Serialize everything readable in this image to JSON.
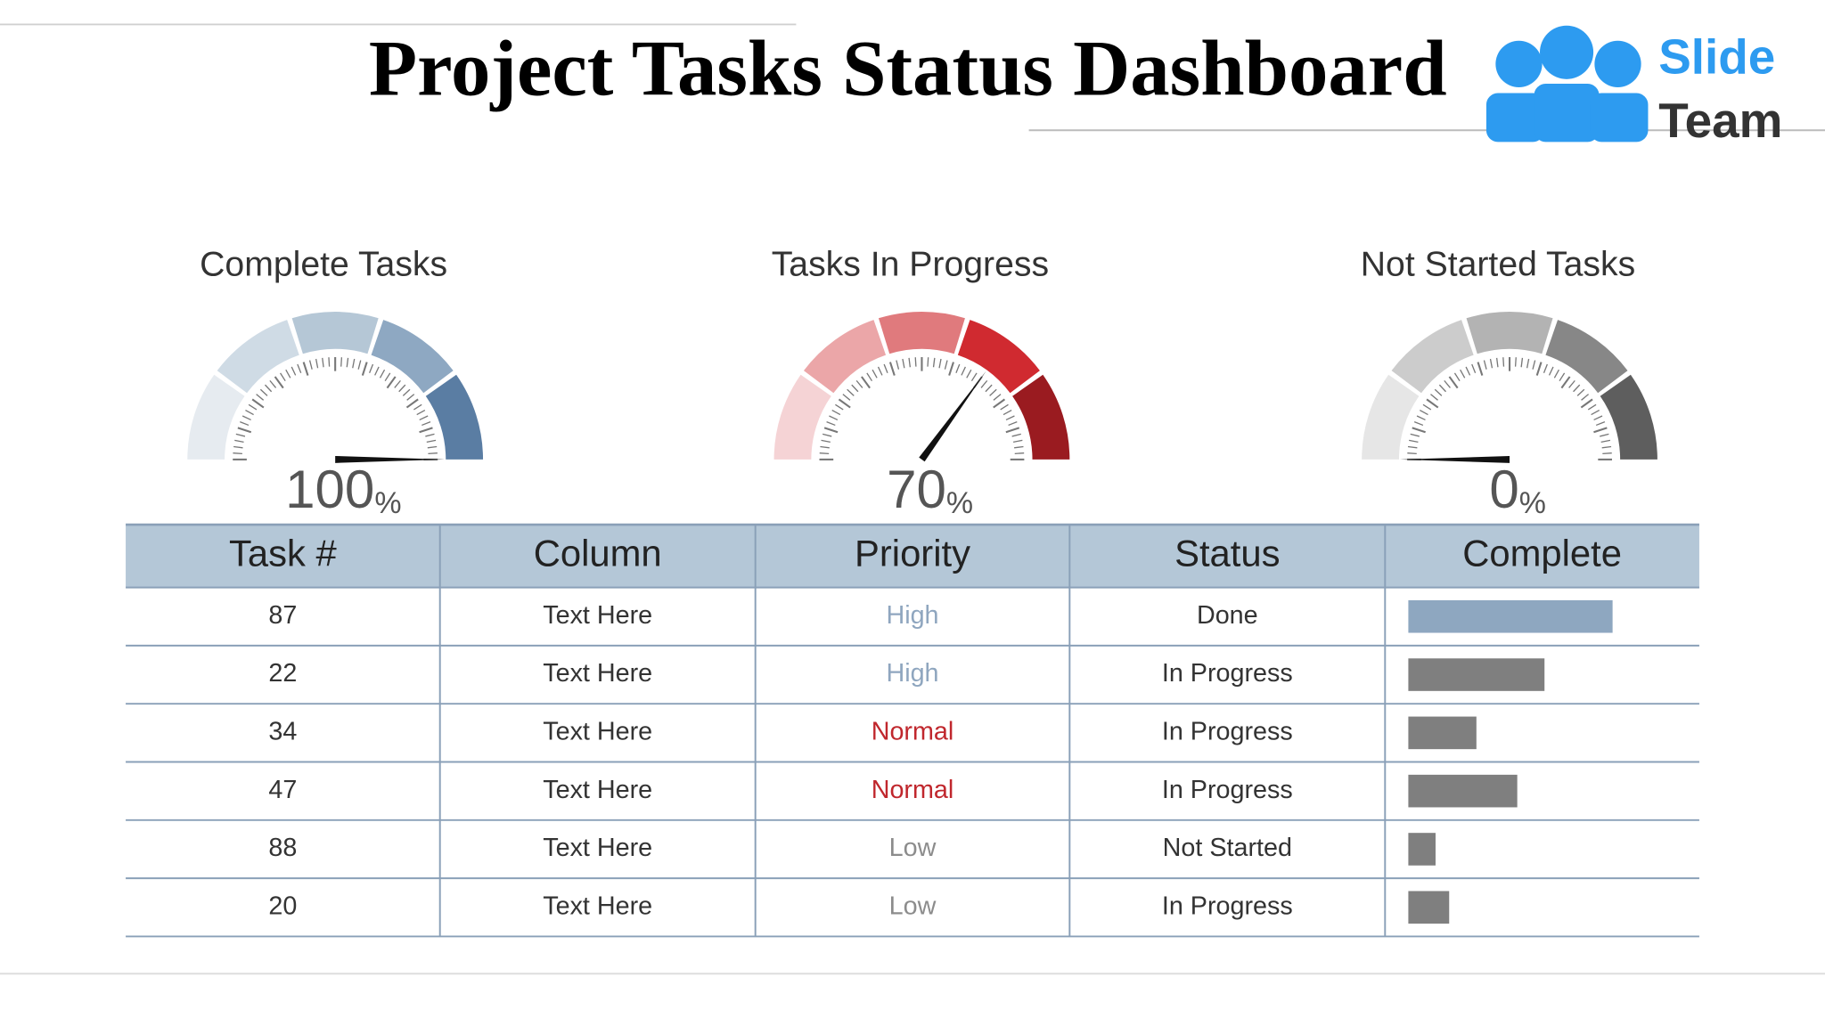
{
  "title": "Project Tasks Status Dashboard",
  "logo": {
    "line1": "Slide",
    "line2": "Team",
    "color": "#2d9bf0"
  },
  "gauges": [
    {
      "title": "Complete Tasks",
      "value": 100,
      "unit": "%",
      "range": [
        0,
        100
      ],
      "colors": [
        "#e6ebf0",
        "#cfdbe5",
        "#b5c7d6",
        "#8ea8c2",
        "#5a7da3"
      ]
    },
    {
      "title": "Tasks In Progress",
      "value": 70,
      "unit": "%",
      "range": [
        0,
        100
      ],
      "colors": [
        "#f5d3d5",
        "#eba6a8",
        "#e07a7d",
        "#d02a30",
        "#9a1b20"
      ]
    },
    {
      "title": "Not Started Tasks",
      "value": 0,
      "unit": "%",
      "range": [
        0,
        100
      ],
      "colors": [
        "#e6e6e6",
        "#cccccc",
        "#b3b3b3",
        "#878787",
        "#5e5e5e"
      ]
    }
  ],
  "table": {
    "headers": [
      "Task #",
      "Column",
      "Priority",
      "Status",
      "Complete"
    ],
    "complete_xlim": [
      0,
      100
    ],
    "rows": [
      {
        "task": 87,
        "column": "Text Here",
        "priority": "High",
        "priority_color": "#8fa6bf",
        "status": "Done",
        "complete": 75,
        "bar_color": "#8ea7c0"
      },
      {
        "task": 22,
        "column": "Text Here",
        "priority": "High",
        "priority_color": "#8fa6bf",
        "status": "In Progress",
        "complete": 50,
        "bar_color": "#7f7f7f"
      },
      {
        "task": 34,
        "column": "Text Here",
        "priority": "Normal",
        "priority_color": "#c0272d",
        "status": "In Progress",
        "complete": 25,
        "bar_color": "#7f7f7f"
      },
      {
        "task": 47,
        "column": "Text Here",
        "priority": "Normal",
        "priority_color": "#c0272d",
        "status": "In Progress",
        "complete": 40,
        "bar_color": "#7f7f7f"
      },
      {
        "task": 88,
        "column": "Text Here",
        "priority": "Low",
        "priority_color": "#8c8c8c",
        "status": "Not Started",
        "complete": 10,
        "bar_color": "#7f7f7f"
      },
      {
        "task": 20,
        "column": "Text Here",
        "priority": "Low",
        "priority_color": "#8c8c8c",
        "status": "In Progress",
        "complete": 15,
        "bar_color": "#7f7f7f"
      }
    ]
  }
}
